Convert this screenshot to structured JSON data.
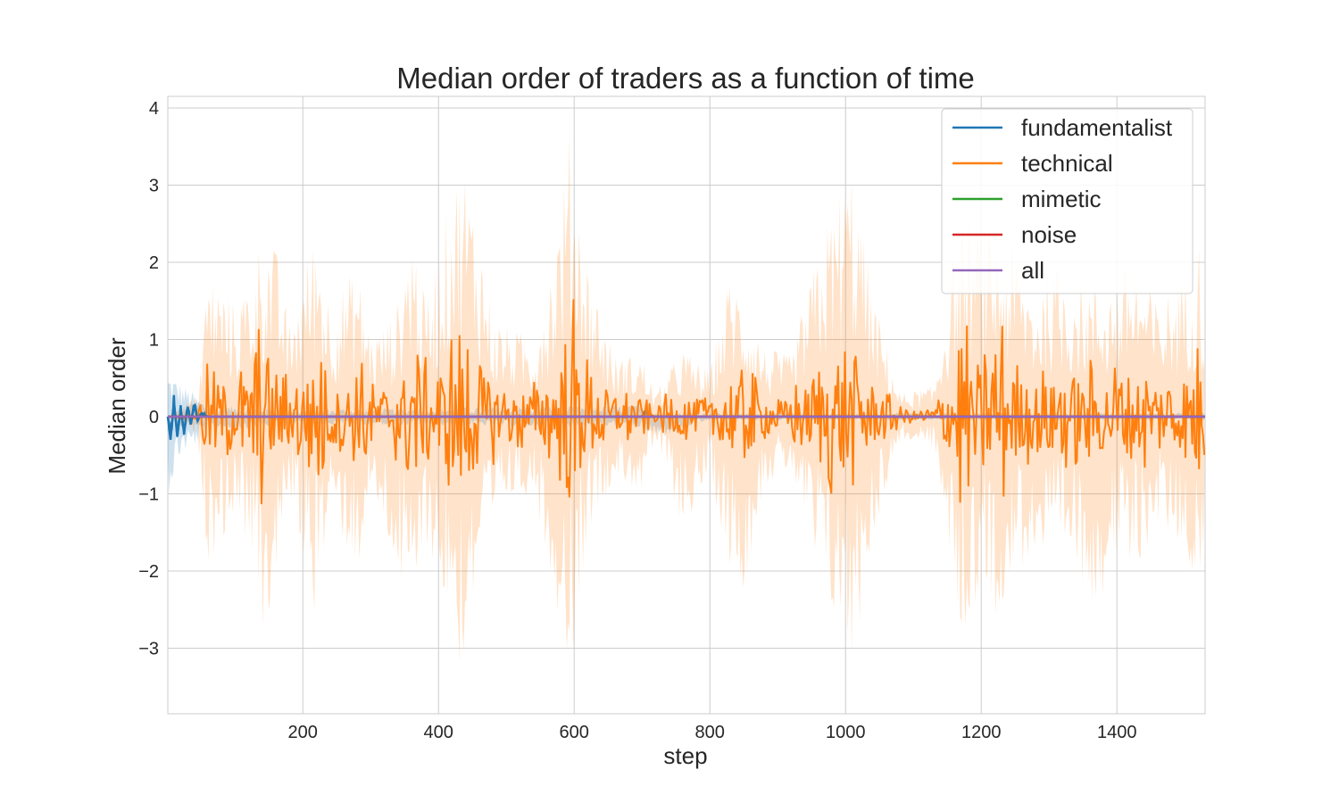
{
  "chart_data": {
    "type": "line",
    "title": "Median order of traders as a function of time",
    "xlabel": "step",
    "ylabel": "Median order",
    "xlim": [
      1,
      1530
    ],
    "ylim": [
      -3.85,
      4.15
    ],
    "xticks": [
      200,
      400,
      600,
      800,
      1000,
      1200,
      1400
    ],
    "xtick_labels": [
      "200",
      "400",
      "600",
      "800",
      "1000",
      "1200",
      "1400"
    ],
    "yticks": [
      -3,
      -2,
      -1,
      0,
      1,
      2,
      3,
      4
    ],
    "ytick_labels": [
      "−3",
      "−2",
      "−1",
      "0",
      "1",
      "2",
      "3",
      "4"
    ],
    "grid": true,
    "legend_position": "top-right",
    "series": [
      {
        "name": "fundamentalist",
        "color": "#1f77b4",
        "values_description_free": true,
        "points": [
          [
            1,
            0
          ],
          [
            5,
            -0.3
          ],
          [
            10,
            0.2
          ],
          [
            15,
            -0.25
          ],
          [
            20,
            0.1
          ],
          [
            25,
            -0.2
          ],
          [
            30,
            0.15
          ],
          [
            35,
            -0.1
          ],
          [
            40,
            0.2
          ],
          [
            45,
            -0.05
          ],
          [
            50,
            0.05
          ],
          [
            60,
            0
          ],
          [
            700,
            0
          ],
          [
            705,
            0.08
          ],
          [
            710,
            0
          ],
          [
            1530,
            0
          ]
        ],
        "band": [
          [
            1,
            0.6,
            -1.05
          ],
          [
            20,
            0.45,
            -0.5
          ],
          [
            40,
            0.3,
            -0.4
          ],
          [
            60,
            0.15,
            -0.2
          ],
          [
            200,
            0.1,
            -0.1
          ],
          [
            700,
            0.15,
            -0.15
          ],
          [
            720,
            0.05,
            -0.3
          ],
          [
            800,
            0.05,
            -0.05
          ],
          [
            1530,
            0.05,
            -0.05
          ]
        ]
      },
      {
        "name": "technical",
        "color": "#ff7f0e",
        "points": [
          [
            1,
            0
          ],
          [
            45,
            0
          ],
          [
            60,
            0.35
          ],
          [
            70,
            -0.3
          ],
          [
            90,
            0.3
          ],
          [
            110,
            -0.4
          ],
          [
            130,
            0.6
          ],
          [
            138,
            0.92
          ],
          [
            145,
            -0.55
          ],
          [
            160,
            0.3
          ],
          [
            175,
            -0.4
          ],
          [
            195,
            0.45
          ],
          [
            210,
            -0.5
          ],
          [
            220,
            0.6
          ],
          [
            228,
            0.7
          ],
          [
            240,
            -0.3
          ],
          [
            260,
            0.25
          ],
          [
            280,
            -0.4
          ],
          [
            290,
            0.75
          ],
          [
            300,
            -0.3
          ],
          [
            320,
            0.2
          ],
          [
            340,
            -0.4
          ],
          [
            360,
            0.75
          ],
          [
            370,
            0.45
          ],
          [
            380,
            -0.5
          ],
          [
            400,
            0.3
          ],
          [
            420,
            -0.6
          ],
          [
            430,
            0.8
          ],
          [
            440,
            -0.8
          ],
          [
            460,
            0.35
          ],
          [
            480,
            -0.4
          ],
          [
            500,
            0.4
          ],
          [
            520,
            -0.35
          ],
          [
            540,
            0.3
          ],
          [
            560,
            -0.3
          ],
          [
            580,
            0.35
          ],
          [
            590,
            0.5
          ],
          [
            595,
            -1.2
          ],
          [
            600,
            1.45
          ],
          [
            605,
            -0.5
          ],
          [
            620,
            0.45
          ],
          [
            640,
            -0.3
          ],
          [
            660,
            0.2
          ],
          [
            680,
            -0.25
          ],
          [
            700,
            0.15
          ],
          [
            720,
            0
          ],
          [
            740,
            0.25
          ],
          [
            760,
            -0.2
          ],
          [
            790,
            0.2
          ],
          [
            810,
            -0.3
          ],
          [
            825,
            0.45
          ],
          [
            840,
            -0.2
          ],
          [
            850,
            0.6
          ],
          [
            860,
            -0.5
          ],
          [
            880,
            0.15
          ],
          [
            900,
            -0.1
          ],
          [
            930,
            0.3
          ],
          [
            960,
            -0.35
          ],
          [
            980,
            0.6
          ],
          [
            990,
            -0.4
          ],
          [
            1000,
            0.5
          ],
          [
            1010,
            -0.3
          ],
          [
            1030,
            0.2
          ],
          [
            1060,
            -0.15
          ],
          [
            1100,
            0
          ],
          [
            1130,
            0.05
          ],
          [
            1150,
            0.2
          ],
          [
            1160,
            -0.3
          ],
          [
            1170,
            1.15
          ],
          [
            1175,
            -1.15
          ],
          [
            1190,
            0.55
          ],
          [
            1205,
            -0.5
          ],
          [
            1220,
            0.95
          ],
          [
            1230,
            -0.9
          ],
          [
            1250,
            0.4
          ],
          [
            1270,
            -0.3
          ],
          [
            1290,
            0.4
          ],
          [
            1300,
            -0.3
          ],
          [
            1320,
            0.55
          ],
          [
            1340,
            -0.35
          ],
          [
            1360,
            0.45
          ],
          [
            1380,
            -0.3
          ],
          [
            1400,
            0.5
          ],
          [
            1420,
            -0.25
          ],
          [
            1440,
            0.4
          ],
          [
            1460,
            -0.3
          ],
          [
            1480,
            0.35
          ],
          [
            1500,
            -0.25
          ],
          [
            1520,
            0.55
          ],
          [
            1530,
            -0.4
          ]
        ],
        "band": [
          [
            1,
            0,
            0
          ],
          [
            45,
            0.3,
            -0.3
          ],
          [
            60,
            1.95,
            -1.95
          ],
          [
            100,
            1.5,
            -1.3
          ],
          [
            130,
            2.0,
            -1.9
          ],
          [
            140,
            2.55,
            -3.05
          ],
          [
            160,
            2.2,
            -2.3
          ],
          [
            180,
            1.2,
            -1.0
          ],
          [
            220,
            2.55,
            -2.65
          ],
          [
            240,
            1.5,
            -1.2
          ],
          [
            280,
            2.0,
            -2.1
          ],
          [
            300,
            1.1,
            -1.0
          ],
          [
            320,
            1.2,
            -1.5
          ],
          [
            340,
            1.5,
            -2.1
          ],
          [
            360,
            2.6,
            -2.9
          ],
          [
            380,
            1.5,
            -1.6
          ],
          [
            420,
            3.0,
            -2.8
          ],
          [
            435,
            3.45,
            -3.45
          ],
          [
            460,
            2.5,
            -2.0
          ],
          [
            480,
            1.3,
            -1.6
          ],
          [
            500,
            1.2,
            -1.1
          ],
          [
            540,
            1.0,
            -1.0
          ],
          [
            570,
            2.2,
            -2.3
          ],
          [
            595,
            3.8,
            -3.4
          ],
          [
            620,
            2.0,
            -1.5
          ],
          [
            660,
            0.8,
            -0.8
          ],
          [
            700,
            0.8,
            -1.0
          ],
          [
            720,
            0.3,
            -0.3
          ],
          [
            760,
            0.9,
            -1.5
          ],
          [
            800,
            0.6,
            -0.8
          ],
          [
            830,
            1.9,
            -2.0
          ],
          [
            850,
            1.6,
            -2.3
          ],
          [
            880,
            0.9,
            -0.9
          ],
          [
            920,
            0.8,
            -0.7
          ],
          [
            960,
            2.2,
            -2.2
          ],
          [
            990,
            3.0,
            -2.8
          ],
          [
            1010,
            3.35,
            -3.35
          ],
          [
            1040,
            1.6,
            -1.6
          ],
          [
            1080,
            0.3,
            -0.3
          ],
          [
            1130,
            0.4,
            -0.4
          ],
          [
            1160,
            2.2,
            -2.3
          ],
          [
            1175,
            2.6,
            -3.05
          ],
          [
            1200,
            2.5,
            -2.2
          ],
          [
            1220,
            2.4,
            -2.6
          ],
          [
            1250,
            2.2,
            -2.1
          ],
          [
            1280,
            1.6,
            -1.8
          ],
          [
            1300,
            2.0,
            -2.1
          ],
          [
            1330,
            1.9,
            -1.9
          ],
          [
            1370,
            1.7,
            -2.5
          ],
          [
            1400,
            1.8,
            -1.9
          ],
          [
            1420,
            2.1,
            -2.2
          ],
          [
            1460,
            1.5,
            -1.4
          ],
          [
            1500,
            1.9,
            -1.8
          ],
          [
            1520,
            2.4,
            -2.3
          ],
          [
            1530,
            1.7,
            -1.7
          ]
        ]
      },
      {
        "name": "mimetic",
        "color": "#2ca02c",
        "points": [
          [
            1,
            0
          ],
          [
            1530,
            0
          ]
        ]
      },
      {
        "name": "noise",
        "color": "#d62728",
        "points": [
          [
            1,
            0
          ],
          [
            1530,
            0
          ]
        ]
      },
      {
        "name": "all",
        "color": "#9467bd",
        "points": [
          [
            1,
            0
          ],
          [
            1530,
            0
          ]
        ]
      }
    ]
  }
}
